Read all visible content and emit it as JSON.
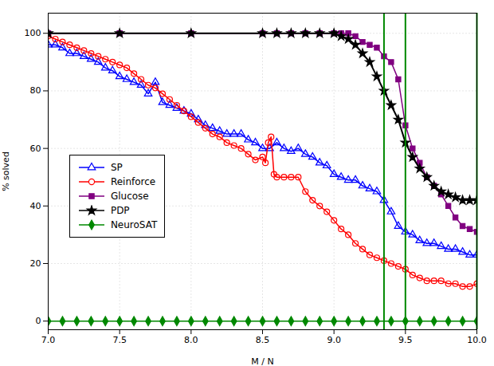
{
  "chart_data": {
    "type": "line",
    "xlabel": "M / N",
    "ylabel": "% solved",
    "xlim": [
      7.0,
      10.0
    ],
    "ylim": [
      -3,
      107
    ],
    "xticks": [
      {
        "value": 7.0,
        "label": "7.0"
      },
      7.5,
      {
        "value": 8.0,
        "label": "8.0"
      },
      8.5,
      {
        "value": 9.0,
        "label": "9.0"
      },
      9.5,
      {
        "value": 10.0,
        "label": "10.0"
      }
    ],
    "yticks": [
      0,
      20,
      40,
      60,
      80,
      100
    ],
    "grid": true,
    "legend": "left",
    "vlines": {
      "values": [
        9.35,
        9.5,
        10.0
      ],
      "color": "#008800"
    },
    "series": [
      {
        "name": "SP",
        "color": "blue",
        "marker": "open-triangle",
        "x": [
          7.0,
          7.05,
          7.1,
          7.15,
          7.2,
          7.25,
          7.3,
          7.35,
          7.4,
          7.45,
          7.5,
          7.55,
          7.6,
          7.65,
          7.7,
          7.75,
          7.8,
          7.85,
          7.9,
          7.95,
          8.0,
          8.05,
          8.1,
          8.15,
          8.2,
          8.25,
          8.3,
          8.35,
          8.4,
          8.45,
          8.5,
          8.55,
          8.6,
          8.65,
          8.7,
          8.75,
          8.8,
          8.85,
          8.9,
          8.95,
          9.0,
          9.05,
          9.1,
          9.15,
          9.2,
          9.25,
          9.3,
          9.35,
          9.4,
          9.45,
          9.5,
          9.55,
          9.6,
          9.65,
          9.7,
          9.75,
          9.8,
          9.85,
          9.9,
          9.95,
          10.0
        ],
        "values": [
          96,
          96,
          95,
          93,
          93,
          92,
          91,
          90,
          88,
          87,
          85,
          84,
          83,
          82,
          79,
          83,
          76,
          75,
          74,
          73,
          72,
          70,
          68,
          67,
          66,
          65,
          65,
          65,
          63,
          62,
          60,
          60,
          62,
          60,
          59,
          60,
          58,
          57,
          55,
          54,
          51,
          50,
          49,
          49,
          47,
          46,
          45,
          42,
          38,
          33,
          31,
          30,
          28,
          27,
          27,
          26,
          25,
          25,
          24,
          23,
          23
        ]
      },
      {
        "name": "Reinforce",
        "color": "red",
        "marker": "open-circle",
        "x": [
          7.0,
          7.05,
          7.1,
          7.15,
          7.2,
          7.25,
          7.3,
          7.35,
          7.4,
          7.45,
          7.5,
          7.55,
          7.6,
          7.65,
          7.7,
          7.75,
          7.8,
          7.85,
          7.9,
          7.95,
          8.0,
          8.05,
          8.1,
          8.15,
          8.2,
          8.25,
          8.3,
          8.35,
          8.4,
          8.45,
          8.5,
          8.52,
          8.54,
          8.56,
          8.58,
          8.6,
          8.65,
          8.7,
          8.75,
          8.8,
          8.85,
          8.9,
          8.95,
          9.0,
          9.05,
          9.1,
          9.15,
          9.2,
          9.25,
          9.3,
          9.35,
          9.4,
          9.45,
          9.5,
          9.55,
          9.6,
          9.65,
          9.7,
          9.75,
          9.8,
          9.85,
          9.9,
          9.95,
          10.0
        ],
        "values": [
          99,
          98,
          97,
          96,
          95,
          94,
          93,
          92,
          91,
          90,
          89,
          88,
          86,
          84,
          82,
          81,
          79,
          77,
          75,
          73,
          71,
          69,
          67,
          65,
          64,
          62,
          61,
          60,
          58,
          56,
          57,
          55,
          62,
          64,
          51,
          50,
          50,
          50,
          50,
          45,
          42,
          40,
          38,
          35,
          32,
          30,
          27,
          25,
          23,
          22,
          21,
          20,
          19,
          18,
          16,
          15,
          14,
          14,
          14,
          13,
          13,
          12,
          12,
          13
        ]
      },
      {
        "name": "Glucose",
        "color": "purple",
        "marker": "square",
        "x": [
          7.0,
          7.5,
          8.0,
          8.5,
          8.6,
          8.7,
          8.8,
          8.9,
          9.0,
          9.05,
          9.1,
          9.15,
          9.2,
          9.25,
          9.3,
          9.35,
          9.4,
          9.45,
          9.5,
          9.55,
          9.6,
          9.65,
          9.7,
          9.75,
          9.8,
          9.85,
          9.9,
          9.95,
          10.0
        ],
        "values": [
          100,
          100,
          100,
          100,
          100,
          100,
          100,
          100,
          100,
          100,
          100,
          99,
          97,
          96,
          95,
          92,
          90,
          84,
          68,
          60,
          55,
          50,
          47,
          44,
          40,
          36,
          33,
          32,
          31
        ]
      },
      {
        "name": "PDP",
        "color": "black",
        "marker": "star",
        "x": [
          7.0,
          7.5,
          8.0,
          8.5,
          8.6,
          8.7,
          8.8,
          8.9,
          9.0,
          9.05,
          9.1,
          9.15,
          9.2,
          9.25,
          9.3,
          9.35,
          9.4,
          9.45,
          9.5,
          9.55,
          9.6,
          9.65,
          9.7,
          9.75,
          9.8,
          9.85,
          9.9,
          9.95,
          10.0
        ],
        "values": [
          100,
          100,
          100,
          100,
          100,
          100,
          100,
          100,
          100,
          99,
          98,
          96,
          93,
          90,
          85,
          80,
          75,
          70,
          62,
          57,
          53,
          50,
          47,
          45,
          44,
          43,
          42,
          42,
          42
        ]
      },
      {
        "name": "NeuroSAT",
        "color": "#008800",
        "marker": "diamond",
        "x": [
          7.0,
          7.1,
          7.2,
          7.3,
          7.4,
          7.5,
          7.6,
          7.7,
          7.8,
          7.9,
          8.0,
          8.1,
          8.2,
          8.3,
          8.4,
          8.5,
          8.6,
          8.7,
          8.8,
          8.9,
          9.0,
          9.1,
          9.2,
          9.3,
          9.4,
          9.5,
          9.6,
          9.7,
          9.8,
          9.9,
          10.0
        ],
        "values": [
          0,
          0,
          0,
          0,
          0,
          0,
          0,
          0,
          0,
          0,
          0,
          0,
          0,
          0,
          0,
          0,
          0,
          0,
          0,
          0,
          0,
          0,
          0,
          0,
          0,
          0,
          0,
          0,
          0,
          0,
          0
        ]
      }
    ]
  }
}
